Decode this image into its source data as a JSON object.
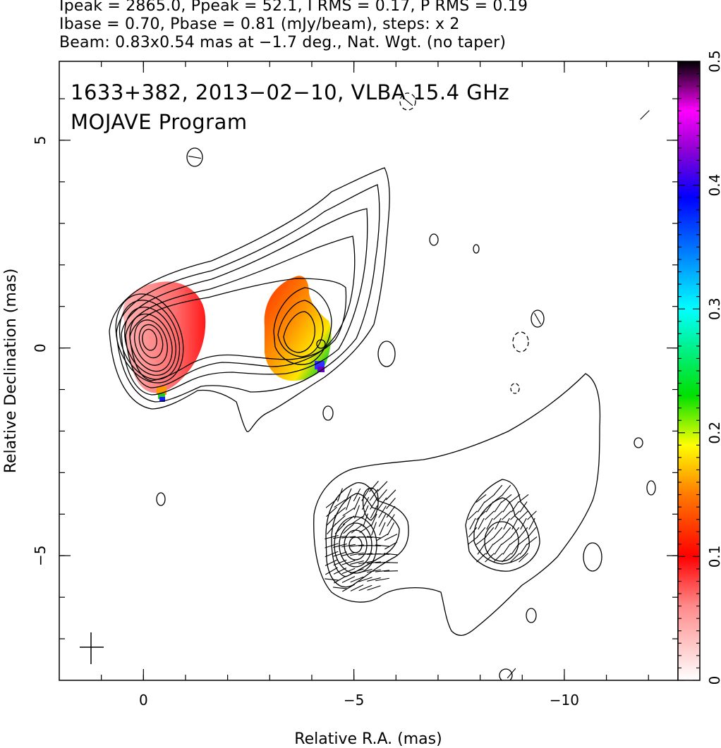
{
  "header": {
    "line1": "Ipeak = 2865.0, Ppeak = 52.1, I RMS = 0.17, P RMS = 0.19",
    "line2": "Ibase = 0.70, Pbase = 0.81 (mJy/beam), steps: x 2",
    "line3": "Beam: 0.83x0.54 mas at −1.7 deg., Nat. Wgt. (no taper)"
  },
  "chart_data": {
    "type": "heatmap",
    "title": "1633+382, 2013−02−10, VLBA 15.4 GHz",
    "subtitle": "MOJAVE Program",
    "xlabel": "Relative R.A. (mas)",
    "ylabel": "Relative Declination (mas)",
    "xlim": [
      2.0,
      -12.7
    ],
    "ylim": [
      -8.0,
      6.9
    ],
    "x_ticks": [
      0,
      -5,
      -10
    ],
    "x_tick_labels": [
      "0",
      "−5",
      "−10"
    ],
    "y_ticks": [
      5,
      0,
      -5
    ],
    "y_tick_labels": [
      "5",
      "0",
      "−5"
    ],
    "colorbar": {
      "range": [
        0,
        0.5
      ],
      "ticks": [
        0,
        0.1,
        0.2,
        0.3,
        0.4,
        0.5
      ],
      "tick_labels": [
        "0",
        "0.1",
        "0.2",
        "0.3",
        "0.4",
        "0.5"
      ]
    },
    "components": [
      {
        "x": 0.0,
        "y": 0.2,
        "contour_levels": 11,
        "fractional_polarization": "0.02-0.10"
      },
      {
        "x": -3.8,
        "y": 0.2,
        "contour_levels": 6,
        "fractional_polarization": "0.05-0.20"
      },
      {
        "x": -5.0,
        "y": -4.9,
        "contour_levels": 7,
        "evpa_vectors": true
      },
      {
        "x": -8.6,
        "y": -4.9,
        "contour_levels": 3,
        "evpa_vectors": true
      }
    ],
    "beam": {
      "major_mas": 0.83,
      "minor_mas": 0.54,
      "pa_deg": -1.7
    },
    "colors": {
      "contour": "#000000",
      "background": "#ffffff"
    }
  }
}
